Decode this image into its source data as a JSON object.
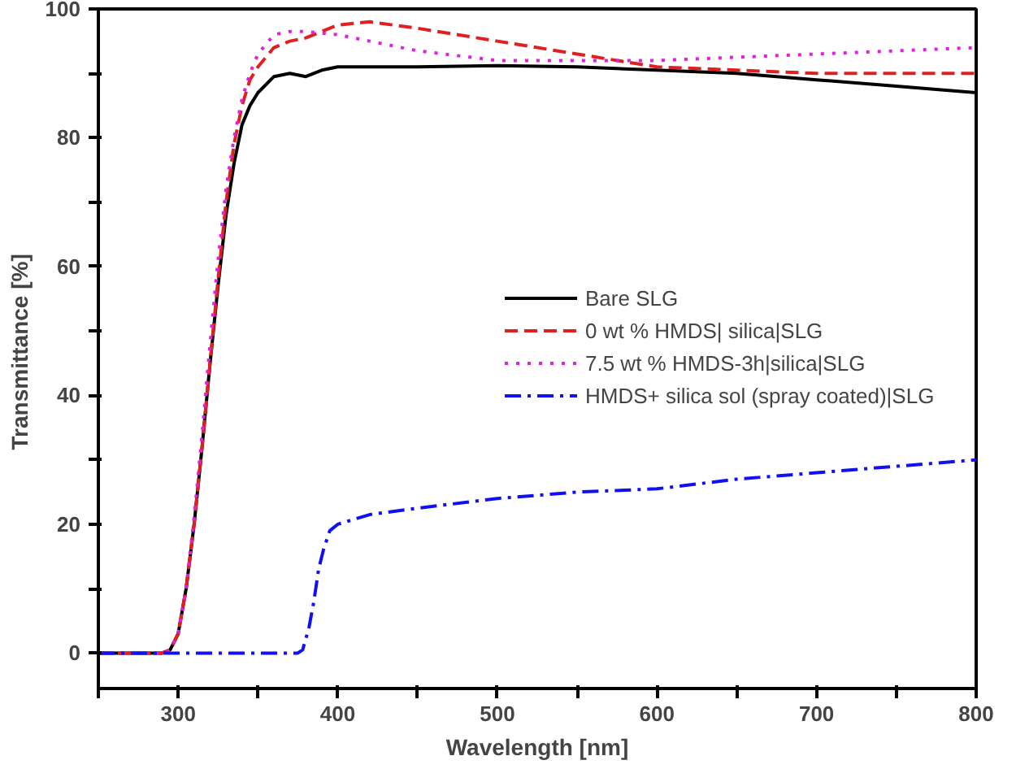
{
  "chart_data": {
    "type": "line",
    "xlabel": "Wavelength [nm]",
    "ylabel": "Transmittance  [%]",
    "xlim": [
      250,
      800
    ],
    "ylim": [
      -5.5,
      100
    ],
    "xticks": [
      {
        "value": 250,
        "label": null
      },
      300,
      {
        "value": 350,
        "label": null
      },
      400,
      {
        "value": 450,
        "label": null
      },
      500,
      {
        "value": 550,
        "label": null
      },
      600,
      {
        "value": 650,
        "label": null
      },
      700,
      {
        "value": 750,
        "label": null
      },
      800
    ],
    "yticks": [
      0,
      {
        "value": 10,
        "label": null
      },
      20,
      {
        "value": 30,
        "label": null
      },
      40,
      {
        "value": 50,
        "label": null
      },
      60,
      {
        "value": 70,
        "label": null
      },
      80,
      {
        "value": 90,
        "label": null
      },
      100
    ],
    "grid": false,
    "legend": "center right",
    "marker": "none",
    "series": [
      {
        "name": "Bare SLG",
        "color": "#000000",
        "line_style": "solid",
        "x": [
          250,
          290,
          295,
          300,
          305,
          310,
          315,
          320,
          325,
          330,
          335,
          340,
          345,
          350,
          360,
          370,
          380,
          390,
          400,
          450,
          500,
          550,
          600,
          650,
          700,
          750,
          800
        ],
        "values": [
          0,
          0,
          0.5,
          3,
          10,
          20,
          32,
          45,
          57,
          68,
          76,
          82,
          85,
          87,
          89.5,
          90,
          89.5,
          90.5,
          91,
          91,
          91.2,
          91,
          90.5,
          90,
          89,
          88,
          87
        ]
      },
      {
        "name": "0 wt % HMDS| silica|SLG",
        "color": "#e02020",
        "line_style": "dashed",
        "x": [
          250,
          290,
          295,
          300,
          305,
          310,
          315,
          320,
          325,
          330,
          335,
          340,
          345,
          350,
          360,
          370,
          380,
          390,
          400,
          420,
          450,
          500,
          550,
          600,
          650,
          700,
          750,
          800
        ],
        "values": [
          0,
          0,
          0.5,
          3,
          10,
          20,
          32,
          45,
          58,
          70,
          79,
          85,
          89,
          91,
          94,
          95,
          95.5,
          96.5,
          97.5,
          98,
          97,
          95,
          93,
          91,
          90.5,
          90,
          90,
          90
        ]
      },
      {
        "name": "7.5 wt % HMDS-3h|silica|SLG",
        "color": "#e020e0",
        "line_style": "dotted",
        "x": [
          250,
          290,
          295,
          300,
          305,
          310,
          315,
          320,
          325,
          330,
          335,
          340,
          345,
          350,
          360,
          370,
          380,
          400,
          420,
          450,
          500,
          550,
          600,
          650,
          700,
          750,
          800
        ],
        "values": [
          0,
          0,
          0.5,
          3,
          10,
          21,
          34,
          48,
          61,
          72,
          80,
          86,
          90,
          93,
          96,
          96.5,
          96.5,
          96,
          95,
          93.5,
          92,
          92,
          92,
          92.5,
          93,
          93.5,
          94
        ]
      },
      {
        "name": "HMDS+ silica sol (spray coated)|SLG",
        "color": "#1010f0",
        "line_style": "dashdot",
        "x": [
          250,
          375,
          378,
          382,
          385,
          388,
          391,
          395,
          400,
          420,
          450,
          500,
          550,
          600,
          650,
          700,
          750,
          800
        ],
        "values": [
          0,
          0,
          0.5,
          4,
          8,
          13,
          16,
          19,
          20,
          21.5,
          22.5,
          24,
          25,
          25.5,
          27,
          28,
          29,
          30
        ]
      }
    ]
  }
}
